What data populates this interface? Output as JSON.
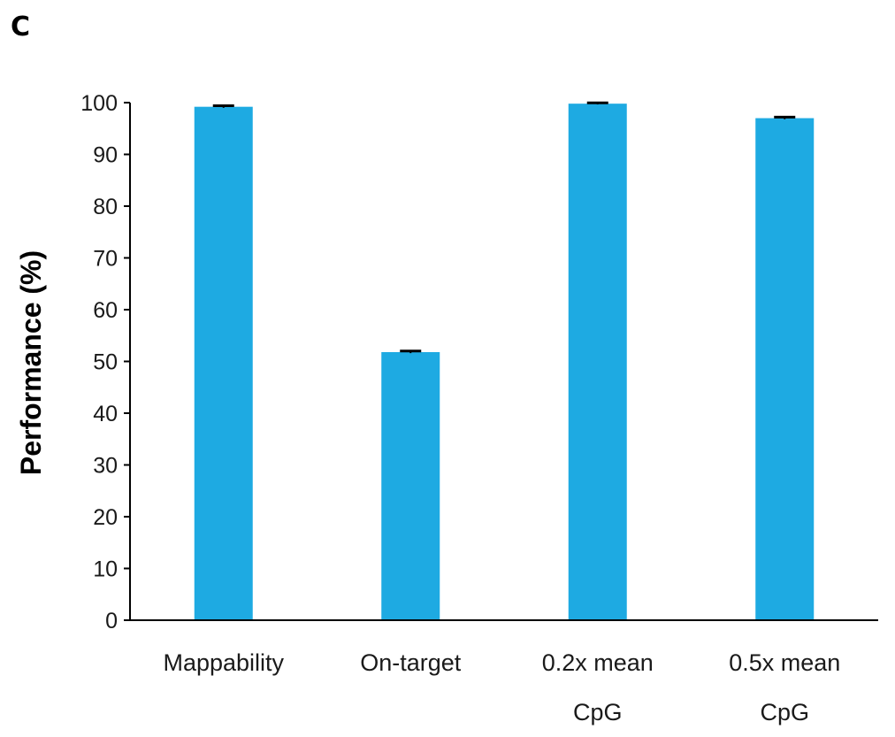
{
  "panel_label": "C",
  "colors": {
    "bar": "#1eaae2",
    "axis": "#000000",
    "error_bar": "#000000"
  },
  "chart_data": {
    "type": "bar",
    "title": "",
    "xlabel": "",
    "ylabel": "Performance (%)",
    "ylim": [
      0,
      100
    ],
    "yticks": [
      0,
      10,
      20,
      30,
      40,
      50,
      60,
      70,
      80,
      90,
      100
    ],
    "grid": false,
    "categories": [
      [
        "Mappability"
      ],
      [
        "On-target"
      ],
      [
        "0.2x mean",
        "CpG"
      ],
      [
        "0.5x mean",
        "CpG"
      ]
    ],
    "values": [
      99.2,
      51.8,
      99.8,
      97.0
    ],
    "error": [
      0.2,
      0.2,
      0.15,
      0.2
    ]
  }
}
